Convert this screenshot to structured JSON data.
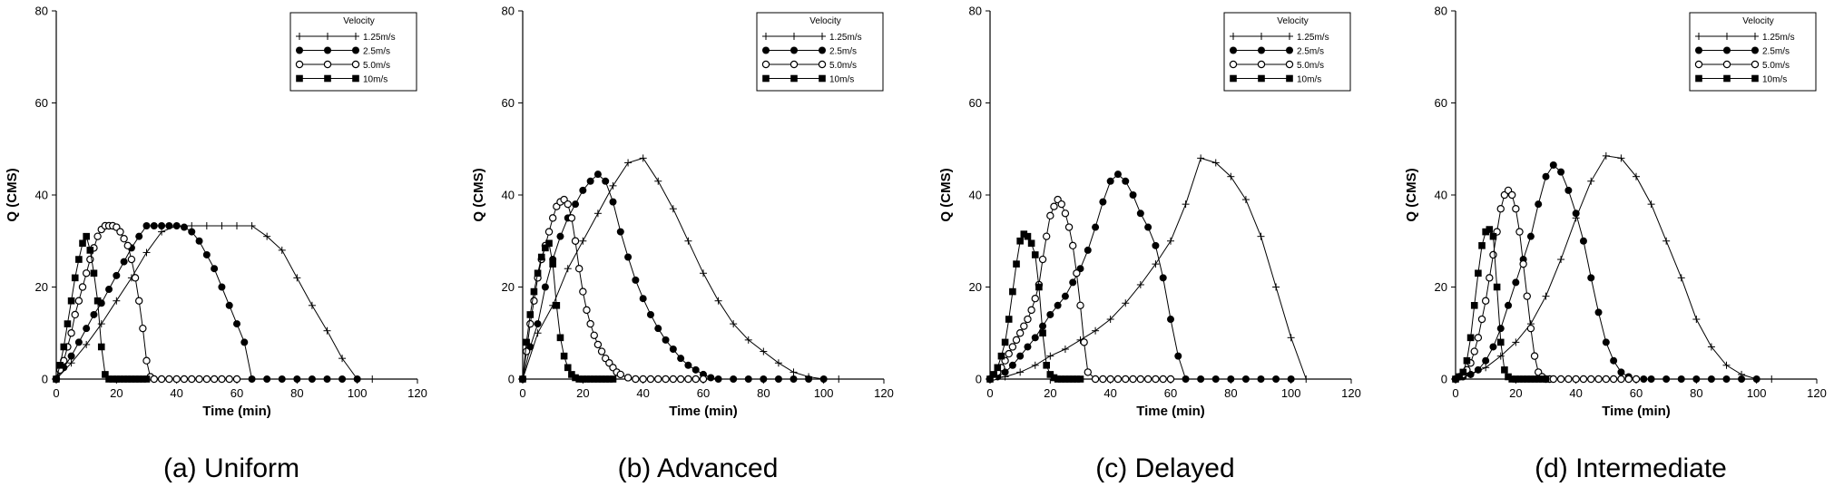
{
  "legend": {
    "title": "Velocity",
    "entries": [
      "1.25m/s",
      "2.5m/s",
      "5.0m/s",
      "10m/s"
    ],
    "markers": [
      "plus",
      "filled-circle",
      "open-circle",
      "filled-square"
    ]
  },
  "chart_data": [
    {
      "type": "line",
      "caption": "(a)  Uniform",
      "xlabel": "Time (min)",
      "ylabel": "Q (CMS)",
      "xlim": [
        0,
        120
      ],
      "ylim": [
        0,
        80
      ],
      "xticks": [
        0,
        20,
        40,
        60,
        80,
        100,
        120
      ],
      "yticks": [
        0,
        20,
        40,
        60,
        80
      ],
      "grid": false,
      "legend_position": "top-right",
      "series": [
        {
          "name": "1.25m/s",
          "x": [
            0,
            5,
            10,
            15,
            20,
            25,
            30,
            35,
            40,
            45,
            50,
            55,
            60,
            65,
            70,
            75,
            80,
            85,
            90,
            95,
            100,
            105
          ],
          "y": [
            0,
            3.5,
            7.5,
            12,
            17,
            22,
            27.5,
            32,
            33.3,
            33.3,
            33.3,
            33.3,
            33.3,
            33.3,
            31,
            28,
            22,
            16,
            10.5,
            4.5,
            0,
            0
          ]
        },
        {
          "name": "2.5m/s",
          "x": [
            0,
            2.5,
            5,
            7.5,
            10,
            12.5,
            15,
            17.5,
            20,
            22.5,
            25,
            27.5,
            30,
            32.5,
            35,
            37.5,
            40,
            42.5,
            45,
            47.5,
            50,
            52.5,
            55,
            57.5,
            60,
            62.5,
            65,
            70,
            75,
            80,
            85,
            90,
            95,
            100
          ],
          "y": [
            0,
            2.5,
            5,
            8,
            11,
            14,
            16.5,
            19.5,
            22.5,
            25.5,
            28.5,
            31,
            33.3,
            33.3,
            33.3,
            33.3,
            33.3,
            33,
            32,
            30,
            27,
            24,
            20,
            16,
            12,
            8,
            0,
            0,
            0,
            0,
            0,
            0,
            0,
            0
          ]
        },
        {
          "name": "5.0m/s",
          "x": [
            0,
            1.25,
            2.5,
            3.75,
            5,
            6.25,
            7.5,
            8.75,
            10,
            11.25,
            12.5,
            13.75,
            15,
            16.25,
            17.5,
            18.75,
            20,
            21.25,
            22.5,
            23.75,
            25,
            26.25,
            27.5,
            28.75,
            30,
            31.25,
            32.5,
            35,
            37.5,
            40,
            42.5,
            45,
            47.5,
            50,
            52.5,
            55,
            57.5,
            60
          ],
          "y": [
            0,
            2,
            4,
            7,
            10,
            14,
            17,
            20,
            23,
            26,
            28.5,
            31,
            32.5,
            33.3,
            33.3,
            33.3,
            33,
            32,
            30.5,
            29,
            26,
            22,
            17,
            11,
            4,
            0.5,
            0,
            0,
            0,
            0,
            0,
            0,
            0,
            0,
            0,
            0,
            0,
            0
          ]
        },
        {
          "name": "10m/s",
          "x": [
            0,
            1.25,
            2.5,
            3.75,
            5,
            6.25,
            7.5,
            8.75,
            10,
            11.25,
            12.5,
            13.75,
            15,
            16.25,
            17.5,
            18.75,
            20,
            21.25,
            22.5,
            23.75,
            25,
            26.25,
            27.5,
            28.75,
            30
          ],
          "y": [
            0,
            3,
            7,
            12,
            17,
            22,
            26,
            29.5,
            31,
            28,
            23,
            17,
            7,
            1,
            0,
            0,
            0,
            0,
            0,
            0,
            0,
            0,
            0,
            0,
            0
          ]
        }
      ]
    },
    {
      "type": "line",
      "caption": "(b)  Advanced",
      "xlabel": "Time (min)",
      "ylabel": "Q (CMS)",
      "xlim": [
        0,
        120
      ],
      "ylim": [
        0,
        80
      ],
      "xticks": [
        0,
        20,
        40,
        60,
        80,
        100,
        120
      ],
      "yticks": [
        0,
        20,
        40,
        60,
        80
      ],
      "grid": false,
      "legend_position": "top-right",
      "series": [
        {
          "name": "1.25m/s",
          "x": [
            0,
            5,
            10,
            15,
            20,
            25,
            30,
            35,
            40,
            45,
            50,
            55,
            60,
            65,
            70,
            75,
            80,
            85,
            90,
            95,
            100,
            105
          ],
          "y": [
            0,
            10,
            16,
            24,
            30,
            36,
            42,
            47,
            48,
            43,
            37,
            30,
            23,
            17,
            12,
            8.5,
            6,
            3.5,
            1.5,
            0.5,
            0,
            0
          ]
        },
        {
          "name": "2.5m/s",
          "x": [
            0,
            2.5,
            5,
            7.5,
            10,
            12.5,
            15,
            17.5,
            20,
            22.5,
            25,
            27.5,
            30,
            32.5,
            35,
            37.5,
            40,
            42.5,
            45,
            47.5,
            50,
            52.5,
            55,
            57.5,
            60,
            62.5,
            65,
            70,
            75,
            80,
            85,
            90,
            95,
            100
          ],
          "y": [
            0,
            7,
            12,
            20,
            26,
            31,
            35,
            38,
            41,
            43,
            44.5,
            43,
            38.5,
            32,
            26.5,
            21.5,
            17.5,
            14,
            11,
            8.5,
            6.5,
            4.5,
            3,
            2,
            1,
            0.3,
            0,
            0,
            0,
            0,
            0,
            0,
            0,
            0
          ]
        },
        {
          "name": "5.0m/s",
          "x": [
            0,
            1.25,
            2.5,
            3.75,
            5,
            6.25,
            7.5,
            8.75,
            10,
            11.25,
            12.5,
            13.75,
            15,
            16.25,
            17.5,
            18.75,
            20,
            21.25,
            22.5,
            23.75,
            25,
            26.25,
            27.5,
            28.75,
            30,
            31.25,
            32.5,
            35,
            37.5,
            40,
            42.5,
            45,
            47.5,
            50,
            52.5,
            55,
            57.5,
            60
          ],
          "y": [
            0,
            6,
            12,
            17,
            22,
            26,
            29,
            32,
            35,
            37.5,
            38.5,
            39,
            38,
            35,
            30,
            24,
            19,
            15,
            12,
            9.5,
            7.5,
            6,
            4.5,
            3.5,
            2.5,
            1.5,
            1,
            0.3,
            0,
            0,
            0,
            0,
            0,
            0,
            0,
            0,
            0,
            0
          ]
        },
        {
          "name": "10m/s",
          "x": [
            0,
            1.25,
            2.5,
            3.75,
            5,
            6.25,
            7.5,
            8.75,
            10,
            11.25,
            12.5,
            13.75,
            15,
            16.25,
            17.5,
            18.75,
            20,
            21.25,
            22.5,
            23.75,
            25,
            26.25,
            27.5,
            28.75,
            30
          ],
          "y": [
            0,
            8,
            14,
            19,
            23,
            26.5,
            28.5,
            29.5,
            25,
            16,
            9,
            5,
            2.5,
            1,
            0.3,
            0,
            0,
            0,
            0,
            0,
            0,
            0,
            0,
            0,
            0
          ]
        }
      ]
    },
    {
      "type": "line",
      "caption": "(c)  Delayed",
      "xlabel": "Time (min)",
      "ylabel": "Q (CMS)",
      "xlim": [
        0,
        120
      ],
      "ylim": [
        0,
        80
      ],
      "xticks": [
        0,
        20,
        40,
        60,
        80,
        100,
        120
      ],
      "yticks": [
        0,
        20,
        40,
        60,
        80
      ],
      "grid": false,
      "legend_position": "top-right",
      "series": [
        {
          "name": "1.25m/s",
          "x": [
            0,
            5,
            10,
            15,
            20,
            25,
            30,
            35,
            40,
            45,
            50,
            55,
            60,
            65,
            70,
            75,
            80,
            85,
            90,
            95,
            100,
            105
          ],
          "y": [
            0,
            0.5,
            1.5,
            3,
            5,
            6.5,
            8.5,
            10.5,
            13,
            16.5,
            20.5,
            25,
            30,
            38,
            48,
            47,
            44,
            39,
            31,
            20,
            9,
            0
          ]
        },
        {
          "name": "2.5m/s",
          "x": [
            0,
            2.5,
            5,
            7.5,
            10,
            12.5,
            15,
            17.5,
            20,
            22.5,
            25,
            27.5,
            30,
            32.5,
            35,
            37.5,
            40,
            42.5,
            45,
            47.5,
            50,
            52.5,
            55,
            57.5,
            60,
            62.5,
            65,
            70,
            75,
            80,
            85,
            90,
            95,
            100
          ],
          "y": [
            0,
            0.5,
            1.5,
            3,
            5,
            7,
            9,
            11.5,
            14,
            16,
            18,
            21,
            24,
            28,
            33,
            38.5,
            43,
            44.5,
            43,
            40,
            36,
            33,
            29,
            22,
            13,
            5,
            0,
            0,
            0,
            0,
            0,
            0,
            0,
            0
          ]
        },
        {
          "name": "5.0m/s",
          "x": [
            0,
            1.25,
            2.5,
            3.75,
            5,
            6.25,
            7.5,
            8.75,
            10,
            11.25,
            12.5,
            13.75,
            15,
            16.25,
            17.5,
            18.75,
            20,
            21.25,
            22.5,
            23.75,
            25,
            26.25,
            27.5,
            28.75,
            30,
            31.25,
            32.5,
            35,
            37.5,
            40,
            42.5,
            45,
            47.5,
            50,
            52.5,
            55,
            57.5,
            60
          ],
          "y": [
            0,
            0.5,
            1.5,
            2.5,
            4,
            5.5,
            7,
            8.5,
            10,
            11.5,
            13,
            15,
            17.5,
            20.5,
            26,
            31,
            35.5,
            37.5,
            39,
            38,
            36,
            33,
            29,
            23,
            16,
            8,
            1.5,
            0,
            0,
            0,
            0,
            0,
            0,
            0,
            0,
            0,
            0,
            0
          ]
        },
        {
          "name": "10m/s",
          "x": [
            0,
            1.25,
            2.5,
            3.75,
            5,
            6.25,
            7.5,
            8.75,
            10,
            11.25,
            12.5,
            13.75,
            15,
            16.25,
            17.5,
            18.75,
            20,
            21.25,
            22.5,
            23.75,
            25,
            26.25,
            27.5,
            28.75,
            30
          ],
          "y": [
            0,
            1,
            2.5,
            5,
            8,
            13,
            19,
            25,
            30,
            31.5,
            31,
            29.5,
            27,
            20,
            10,
            3,
            1,
            0.3,
            0,
            0,
            0,
            0,
            0,
            0,
            0
          ]
        }
      ]
    },
    {
      "type": "line",
      "caption": "(d)  Intermediate",
      "xlabel": "Time (min)",
      "ylabel": "Q (CMS)",
      "xlim": [
        0,
        120
      ],
      "ylim": [
        0,
        80
      ],
      "xticks": [
        0,
        20,
        40,
        60,
        80,
        100,
        120
      ],
      "yticks": [
        0,
        20,
        40,
        60,
        80
      ],
      "grid": false,
      "legend_position": "top-right",
      "series": [
        {
          "name": "1.25m/s",
          "x": [
            0,
            5,
            10,
            15,
            20,
            25,
            30,
            35,
            40,
            45,
            50,
            55,
            60,
            65,
            70,
            75,
            80,
            85,
            90,
            95,
            100,
            105
          ],
          "y": [
            0,
            1,
            2.5,
            5,
            8,
            12,
            18,
            26,
            35,
            43,
            48.5,
            48,
            44,
            38,
            30,
            22,
            13,
            7,
            3,
            1,
            0,
            0
          ]
        },
        {
          "name": "2.5m/s",
          "x": [
            0,
            2.5,
            5,
            7.5,
            10,
            12.5,
            15,
            17.5,
            20,
            22.5,
            25,
            27.5,
            30,
            32.5,
            35,
            37.5,
            40,
            42.5,
            45,
            47.5,
            50,
            52.5,
            55,
            57.5,
            60,
            62.5,
            65,
            70,
            75,
            80,
            85,
            90,
            95,
            100
          ],
          "y": [
            0,
            0.5,
            1,
            2,
            4,
            7,
            11,
            16,
            21,
            26,
            31,
            38,
            44,
            46.5,
            45,
            41,
            36,
            30,
            22,
            14.5,
            8,
            4,
            1.5,
            0.5,
            0,
            0,
            0,
            0,
            0,
            0,
            0,
            0,
            0,
            0
          ]
        },
        {
          "name": "5.0m/s",
          "x": [
            0,
            1.25,
            2.5,
            3.75,
            5,
            6.25,
            7.5,
            8.75,
            10,
            11.25,
            12.5,
            13.75,
            15,
            16.25,
            17.5,
            18.75,
            20,
            21.25,
            22.5,
            23.75,
            25,
            26.25,
            27.5,
            28.75,
            30,
            31.25,
            32.5,
            35,
            37.5,
            40,
            42.5,
            45,
            47.5,
            50,
            52.5,
            55,
            57.5,
            60
          ],
          "y": [
            0,
            0.5,
            1,
            2,
            3.5,
            6,
            9,
            13,
            17,
            22,
            27,
            32,
            37,
            40,
            41,
            40,
            37,
            32,
            25,
            18,
            11,
            5,
            1.5,
            0.5,
            0,
            0,
            0,
            0,
            0,
            0,
            0,
            0,
            0,
            0,
            0,
            0,
            0,
            0
          ]
        },
        {
          "name": "10m/s",
          "x": [
            0,
            1.25,
            2.5,
            3.75,
            5,
            6.25,
            7.5,
            8.75,
            10,
            11.25,
            12.5,
            13.75,
            15,
            16.25,
            17.5,
            18.75,
            20,
            21.25,
            22.5,
            23.75,
            25,
            26.25,
            27.5,
            28.75,
            30
          ],
          "y": [
            0,
            0.5,
            1.5,
            4,
            9,
            16,
            23,
            29,
            32,
            32.5,
            31,
            20,
            8,
            2,
            0.5,
            0,
            0,
            0,
            0,
            0,
            0,
            0,
            0,
            0,
            0
          ]
        }
      ]
    }
  ]
}
